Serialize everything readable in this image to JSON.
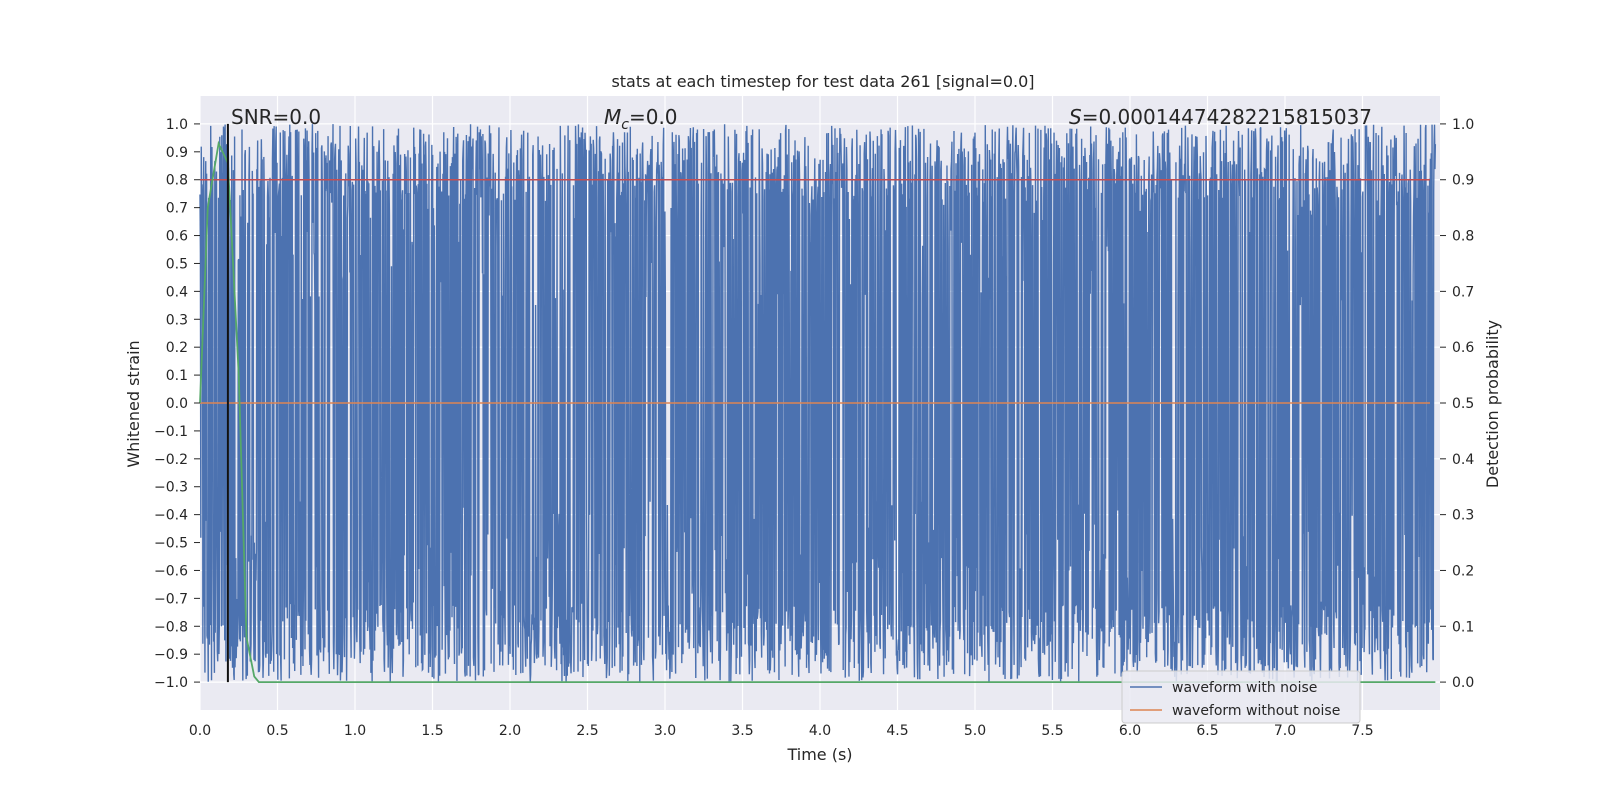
{
  "chart_data": {
    "type": "line",
    "title": "stats at each timestep for test data 261 [signal=0.0]",
    "xlabel": "Time (s)",
    "ylabel": "Whitened strain",
    "y2label": "Detection probability",
    "xlim": [
      0.0,
      8.0
    ],
    "ylim": [
      -1.1,
      1.1
    ],
    "y2lim": [
      -0.05,
      1.05
    ],
    "xticks": [
      "0.0",
      "0.5",
      "1.0",
      "1.5",
      "2.0",
      "2.5",
      "3.0",
      "3.5",
      "4.0",
      "4.5",
      "5.0",
      "5.5",
      "6.0",
      "6.5",
      "7.0",
      "7.5"
    ],
    "yticks": [
      "1.0",
      "0.9",
      "0.8",
      "0.7",
      "0.6",
      "0.5",
      "0.4",
      "0.3",
      "0.2",
      "0.1",
      "0.0",
      "−0.1",
      "−0.2",
      "−0.3",
      "−0.4",
      "−0.5",
      "−0.6",
      "−0.7",
      "−0.8",
      "−0.9",
      "−1.0"
    ],
    "y2ticks": [
      "1.0",
      "0.9",
      "0.8",
      "0.7",
      "0.6",
      "0.5",
      "0.4",
      "0.3",
      "0.2",
      "0.1",
      "0.0"
    ],
    "grid": true,
    "legend_position": "lower-right",
    "annotations": {
      "snr_label": "SNR=0.0",
      "mc_symbol": "M",
      "mc_subscript": "c",
      "mc_value": "=0.0",
      "s_symbol": "S",
      "s_value": "=0.00014474282215815037"
    },
    "marker_x": 0.18,
    "series": [
      {
        "name": "waveform with noise",
        "color": "#4c72b0",
        "style": "dense noise between about -1.0 and 1.0, normalized to the range"
      },
      {
        "name": "waveform without noise",
        "color": "#dd8452",
        "values_flat": 0.0
      },
      {
        "color": "#c44e52",
        "axis": "right",
        "values_flat": 0.9
      },
      {
        "color": "#55a868",
        "axis": "right",
        "x": [
          0.0,
          0.05,
          0.12,
          0.18,
          0.25,
          0.3,
          0.35,
          0.38,
          8.0
        ],
        "y": [
          0.5,
          0.85,
          0.965,
          0.93,
          0.55,
          0.08,
          0.01,
          0.0,
          0.0
        ]
      }
    ],
    "legend": [
      "waveform with noise",
      "waveform without noise"
    ]
  }
}
